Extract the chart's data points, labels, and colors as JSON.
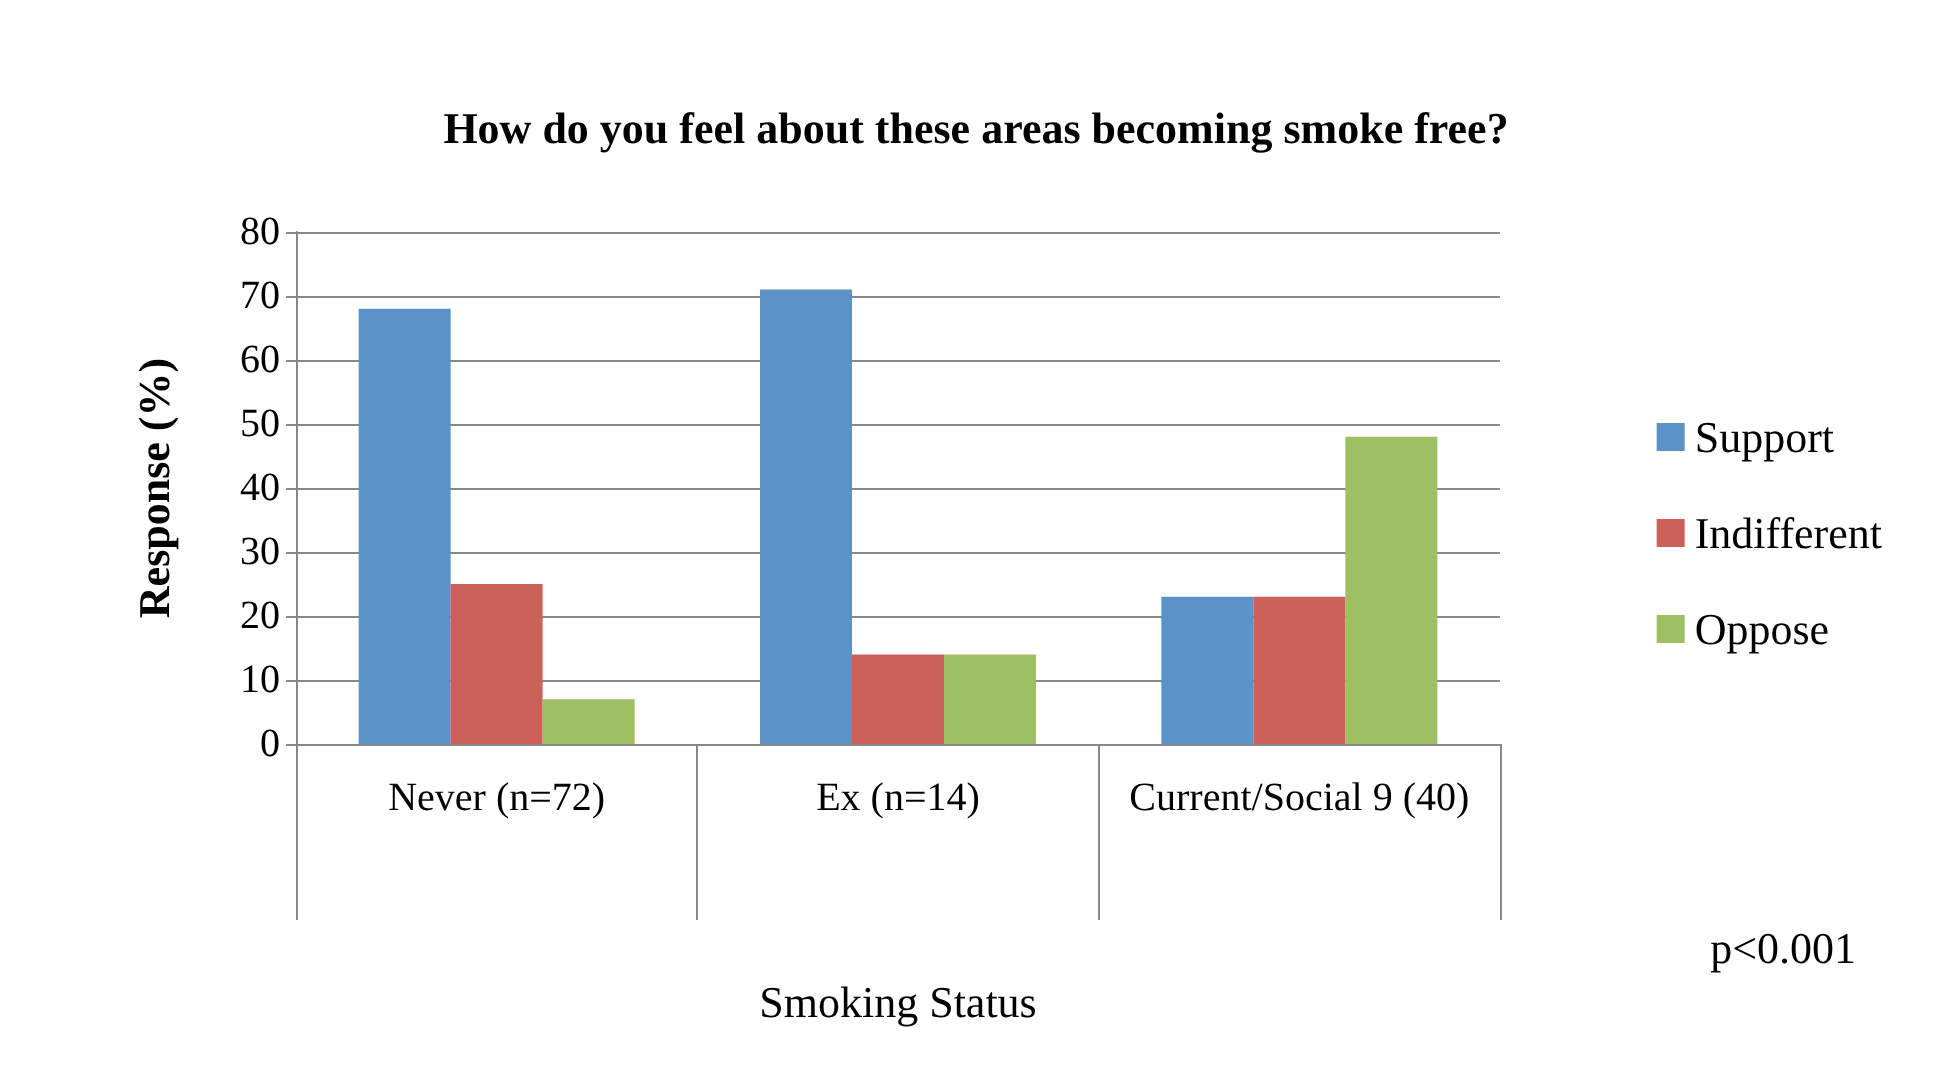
{
  "chart_data": {
    "type": "bar",
    "title": "How do you feel about these areas becoming smoke free?",
    "xlabel": "Smoking Status",
    "ylabel": "Response (%)",
    "categories": [
      "Never (n=72)",
      "Ex (n=14)",
      "Current/Social 9 (40)"
    ],
    "series": [
      {
        "name": "Support",
        "color": "#5b93c9",
        "values": [
          68,
          71,
          23
        ]
      },
      {
        "name": "Indifferent",
        "color": "#cc605a",
        "values": [
          25,
          14,
          23
        ]
      },
      {
        "name": "Oppose",
        "color": "#9fbf63",
        "values": [
          7,
          14,
          48
        ]
      }
    ],
    "ylim": [
      0,
      80
    ],
    "yticks": [
      0,
      10,
      20,
      30,
      40,
      50,
      60,
      70,
      80
    ],
    "grid": "y",
    "legend": "right",
    "annotations": [
      "p<0.001"
    ]
  }
}
